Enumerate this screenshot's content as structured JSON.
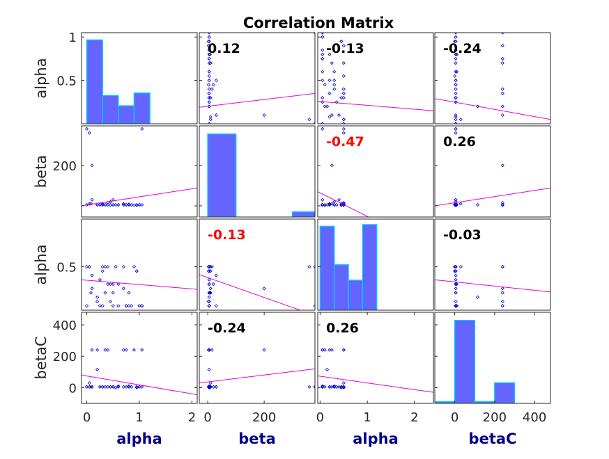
{
  "chart_data": {
    "type": "scatter",
    "title": "Correlation Matrix",
    "variables": [
      "alpha",
      "beta",
      "alpha",
      "betaC"
    ],
    "row_labels": [
      "alpha",
      "beta",
      "alpha",
      "betaC"
    ],
    "col_labels": [
      "alpha",
      "beta",
      "alpha",
      "betaC"
    ],
    "col_label_color": "#00008B",
    "colors": {
      "hist_fill": "#6464FF",
      "hist_edge": "#00C8FF",
      "points": "#0000CC",
      "fit_line": "#E000E0",
      "corr_normal": "#000000",
      "corr_significant": "#FF0000"
    },
    "correlations": [
      [
        null,
        0.12,
        -0.13,
        -0.24
      ],
      [
        0.12,
        null,
        -0.47,
        0.26
      ],
      [
        -0.13,
        -0.47,
        null,
        -0.03
      ],
      [
        -0.24,
        0.26,
        -0.03,
        null
      ]
    ],
    "correlation_labels": [
      [
        null,
        "0.12",
        "-0.13",
        "-0.24"
      ],
      [
        null,
        "0.12",
        "-0.47",
        "0.26"
      ],
      [
        null,
        "-0.13",
        "-0.47",
        "-0.03"
      ],
      [
        null,
        "-0.24",
        "0.26",
        "-0.03"
      ]
    ],
    "significant": [
      [
        false,
        false,
        false,
        false
      ],
      [
        false,
        false,
        true,
        false
      ],
      [
        false,
        true,
        false,
        false
      ],
      [
        false,
        false,
        false,
        false
      ]
    ],
    "x_ranges": [
      [
        -0.1,
        2.1
      ],
      [
        -30,
        380
      ],
      [
        -0.05,
        2.4
      ],
      [
        -100,
        480
      ]
    ],
    "y_ranges": [
      [
        0,
        1.05
      ],
      [
        -55,
        395
      ],
      [
        0,
        1.05
      ],
      [
        -100,
        480
      ]
    ],
    "x_ticks": [
      [
        0,
        1,
        2
      ],
      [
        0,
        200
      ],
      [
        0,
        1,
        2
      ],
      [
        0,
        200,
        400
      ]
    ],
    "x_tick_labels": [
      [
        "0",
        "1",
        "2"
      ],
      [
        "0",
        "200"
      ],
      [
        "0",
        "1",
        "2"
      ],
      [
        "0",
        "200",
        "400"
      ]
    ],
    "y_ticks": [
      [
        0.5,
        1
      ],
      [
        0,
        200
      ],
      [
        0.5
      ],
      [
        0,
        200,
        400
      ]
    ],
    "y_tick_labels": [
      [
        "0.5",
        "1"
      ],
      [
        "",
        "200"
      ],
      [
        "0.5"
      ],
      [
        "0",
        "200",
        "400"
      ]
    ],
    "histograms": [
      {
        "edges": [
          0,
          0.3,
          0.6,
          0.9,
          1.2
        ],
        "values": [
          0.98,
          0.33,
          0.21,
          0.36
        ]
      },
      {
        "edges": [
          0,
          100,
          200,
          300,
          400
        ],
        "values": [
          0.97,
          0,
          0,
          0.06
        ]
      },
      {
        "edges": [
          0,
          0.3,
          0.6,
          0.9,
          1.2
        ],
        "values": [
          0.98,
          0.53,
          0.35,
          1.0
        ]
      },
      {
        "edges": [
          -100,
          0,
          100,
          200,
          300
        ],
        "values": [
          0.02,
          0.97,
          0.02,
          0.24
        ]
      }
    ],
    "fit_lines": [
      [
        null,
        [
          [
            -30,
            0.19
          ],
          [
            380,
            0.35
          ]
        ],
        [
          [
            -0.05,
            0.26
          ],
          [
            2.4,
            0.15
          ]
        ],
        [
          [
            -100,
            0.29
          ],
          [
            480,
            0.05
          ]
        ]
      ],
      [
        [
          [
            -0.1,
            0.5
          ],
          [
            2.1,
            88
          ]
        ],
        null,
        [
          [
            -0.05,
            70
          ],
          [
            2.4,
            -215
          ]
        ],
        [
          [
            -100,
            0
          ],
          [
            480,
            88
          ]
        ]
      ],
      [
        [
          [
            -0.1,
            0.35
          ],
          [
            2.1,
            0.24
          ]
        ],
        [
          [
            -30,
            0.41
          ],
          [
            380,
            -0.06
          ]
        ],
        null,
        [
          [
            -100,
            0.35
          ],
          [
            480,
            0.21
          ]
        ]
      ],
      [
        [
          [
            -0.1,
            80
          ],
          [
            2.1,
            -45
          ]
        ],
        [
          [
            -30,
            30
          ],
          [
            380,
            120
          ]
        ],
        [
          [
            -0.05,
            75
          ],
          [
            2.4,
            -30
          ]
        ],
        null
      ]
    ],
    "samples": {
      "alpha": [
        0,
        0.05,
        0.1,
        0.2,
        0.25,
        0.3,
        0.35,
        0.4,
        0.45,
        0.5,
        0.55,
        0.6,
        0.7,
        0.75,
        0.8,
        0.85,
        0.9,
        0.95,
        1.0,
        1.05,
        0,
        0.05,
        0.1,
        0.2,
        0.25,
        0.3,
        0.35,
        0.4,
        0.45,
        0.5,
        0.6,
        0.7,
        0.8,
        0.95,
        1.0,
        1.05,
        0.08,
        0.3,
        0.5,
        0.75
      ],
      "beta": [
        380,
        360,
        200,
        5,
        5,
        10,
        5,
        15,
        20,
        30,
        5,
        5,
        10,
        5,
        8,
        5,
        3,
        5,
        5,
        380,
        5,
        10,
        30,
        5,
        5,
        5,
        5,
        5,
        3,
        5,
        5,
        5,
        5,
        3,
        5,
        5,
        10,
        5,
        5,
        5
      ],
      "alpha2": [
        0.5,
        0.5,
        0.25,
        0.1,
        0.05,
        0.45,
        0.2,
        0.5,
        0.3,
        0.05,
        0.5,
        0.3,
        0.25,
        0.05,
        0.2,
        0.05,
        0.5,
        0.45,
        0.05,
        0.05,
        0.05,
        0.5,
        0.4,
        0.15,
        0.35,
        0.05,
        0.5,
        0.3,
        0.1,
        0.2,
        0.05,
        0.5,
        0.05,
        0.45,
        0.05,
        0.05,
        0.2,
        0.5,
        0.3,
        0.05
      ],
      "betaC": [
        5,
        5,
        240,
        240,
        5,
        5,
        240,
        240,
        5,
        5,
        0,
        10,
        5,
        240,
        5,
        5,
        240,
        0,
        5,
        5,
        5,
        30,
        5,
        115,
        5,
        5,
        5,
        5,
        5,
        5,
        5,
        240,
        10,
        5,
        5,
        240,
        5,
        5,
        5,
        5
      ]
    }
  }
}
